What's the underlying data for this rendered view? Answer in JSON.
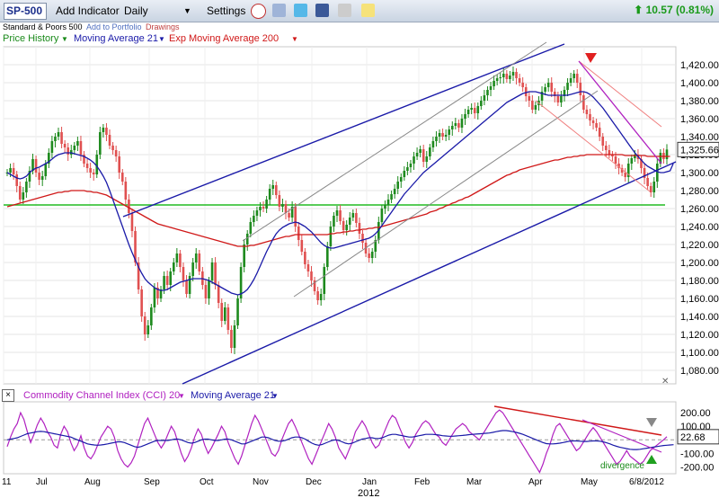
{
  "toolbar": {
    "ticker": "SP-500",
    "add_indicator": "Add Indicator",
    "period": "Daily",
    "settings": "Settings",
    "change": "10.57 (0.81%)"
  },
  "subbar": {
    "name": "Standard & Poors 500",
    "add_portfolio": "Add to Portfolio",
    "drawings": "Drawings"
  },
  "legend": {
    "price": "Price History",
    "ma21": "Moving Average 21",
    "ema200": "Exp Moving Average 200",
    "cci": "Commodity Channel Index (CCI) 20",
    "cci_ma": "Moving Average 21"
  },
  "colors": {
    "up": "#1e8a1e",
    "down": "#e05050",
    "ma21": "#1a1aa8",
    "ema200": "#d01818",
    "support": "#22bb22",
    "channel": "#1a1aa8",
    "cci": "#b020c0"
  },
  "chart_data": [
    {
      "type": "candlestick",
      "title": "",
      "ylim": [
        1065,
        1440
      ],
      "y_ticks": [
        "1,080.00",
        "1,100.00",
        "1,120.00",
        "1,140.00",
        "1,160.00",
        "1,180.00",
        "1,200.00",
        "1,220.00",
        "1,240.00",
        "1,260.00",
        "1,280.00",
        "1,300.00",
        "1,320.00",
        "1,340.00",
        "1,360.00",
        "1,380.00",
        "1,400.00",
        "1,420.00"
      ],
      "y_tick_values": [
        1080,
        1100,
        1120,
        1140,
        1160,
        1180,
        1200,
        1220,
        1240,
        1260,
        1280,
        1300,
        1320,
        1340,
        1360,
        1380,
        1400,
        1420
      ],
      "x_labels": [
        "11",
        "Jul",
        "Aug",
        "Sep",
        "Oct",
        "Nov",
        "Dec",
        "Jan",
        "Feb",
        "Mar",
        "Apr",
        "May",
        "6/8/2012"
      ],
      "year_label": "2012",
      "last_price": "1,325.66",
      "series": {
        "close": [
          1300,
          1305,
          1298,
          1285,
          1270,
          1278,
          1290,
          1302,
          1315,
          1300,
          1292,
          1296,
          1310,
          1322,
          1335,
          1340,
          1345,
          1332,
          1328,
          1320,
          1325,
          1330,
          1335,
          1320,
          1310,
          1305,
          1300,
          1298,
          1320,
          1345,
          1350,
          1342,
          1330,
          1325,
          1318,
          1300,
          1290,
          1270,
          1255,
          1235,
          1200,
          1170,
          1140,
          1120,
          1130,
          1150,
          1172,
          1160,
          1170,
          1185,
          1175,
          1190,
          1200,
          1210,
          1195,
          1180,
          1165,
          1185,
          1200,
          1210,
          1190,
          1175,
          1160,
          1180,
          1200,
          1175,
          1155,
          1135,
          1150,
          1125,
          1105,
          1130,
          1160,
          1195,
          1220,
          1232,
          1245,
          1252,
          1258,
          1262,
          1260,
          1270,
          1282,
          1286,
          1275,
          1262,
          1265,
          1255,
          1250,
          1262,
          1240,
          1225,
          1212,
          1198,
          1190,
          1180,
          1168,
          1158,
          1165,
          1195,
          1218,
          1240,
          1252,
          1258,
          1246,
          1236,
          1242,
          1250,
          1255,
          1244,
          1232,
          1222,
          1210,
          1205,
          1212,
          1225,
          1245,
          1260,
          1264,
          1270,
          1276,
          1282,
          1290,
          1295,
          1302,
          1306,
          1310,
          1318,
          1322,
          1326,
          1312,
          1318,
          1328,
          1335,
          1340,
          1344,
          1340,
          1342,
          1348,
          1352,
          1355,
          1350,
          1360,
          1365,
          1370,
          1372,
          1366,
          1374,
          1380,
          1386,
          1392,
          1396,
          1402,
          1405,
          1406,
          1410,
          1404,
          1408,
          1412,
          1405,
          1400,
          1395,
          1385,
          1380,
          1370,
          1375,
          1380,
          1390,
          1395,
          1400,
          1390,
          1385,
          1378,
          1385,
          1392,
          1400,
          1405,
          1410,
          1400,
          1386,
          1370,
          1365,
          1358,
          1355,
          1350,
          1340,
          1330,
          1325,
          1320,
          1318,
          1310,
          1305,
          1300,
          1295,
          1310,
          1316,
          1320,
          1315,
          1305,
          1294,
          1285,
          1278,
          1290,
          1310,
          1322,
          1315,
          1325.66
        ],
        "ma21": [
          1300,
          1298,
          1296,
          1294,
          1293,
          1294,
          1296,
          1300,
          1303,
          1305,
          1306,
          1308,
          1310,
          1312,
          1315,
          1318,
          1320,
          1321,
          1322,
          1322,
          1322,
          1321,
          1320,
          1319,
          1318,
          1316,
          1314,
          1311,
          1307,
          1302,
          1296,
          1289,
          1280,
          1270,
          1260,
          1250,
          1240,
          1230,
          1220,
          1211,
          1203,
          1195,
          1188,
          1182,
          1178,
          1175,
          1172,
          1170,
          1169,
          1169,
          1170,
          1172,
          1174,
          1176,
          1178,
          1179,
          1180,
          1181,
          1182,
          1182,
          1182,
          1182,
          1181,
          1180,
          1178,
          1176,
          1174,
          1172,
          1170,
          1168,
          1166,
          1165,
          1164,
          1165,
          1167,
          1170,
          1175,
          1181,
          1188,
          1196,
          1204,
          1212,
          1219,
          1226,
          1232,
          1236,
          1239,
          1241,
          1243,
          1244,
          1245,
          1244,
          1242,
          1240,
          1237,
          1234,
          1230,
          1226,
          1222,
          1219,
          1217,
          1216,
          1216,
          1217,
          1218,
          1219,
          1220,
          1221,
          1222,
          1223,
          1224,
          1225,
          1226,
          1227,
          1229,
          1232,
          1236,
          1241,
          1246,
          1251,
          1256,
          1261,
          1266,
          1271,
          1276,
          1280,
          1284,
          1288,
          1292,
          1296,
          1300,
          1303,
          1306,
          1309,
          1312,
          1315,
          1318,
          1321,
          1324,
          1327,
          1330,
          1333,
          1336,
          1339,
          1342,
          1345,
          1348,
          1351,
          1354,
          1357,
          1360,
          1363,
          1366,
          1369,
          1372,
          1375,
          1378,
          1380,
          1382,
          1384,
          1386,
          1388,
          1389,
          1390,
          1390,
          1390,
          1389,
          1388,
          1387,
          1386,
          1386,
          1386,
          1386,
          1386,
          1386,
          1386,
          1387,
          1388,
          1389,
          1390,
          1390,
          1389,
          1387,
          1384,
          1380,
          1376,
          1372,
          1367,
          1362,
          1357,
          1352,
          1347,
          1342,
          1337,
          1332,
          1327,
          1322,
          1318,
          1314,
          1310,
          1307,
          1305,
          1303,
          1301,
          1300,
          1300,
          1301,
          1302,
          1310
        ],
        "ema200": [
          1262,
          1263,
          1264,
          1265,
          1266,
          1267,
          1268,
          1269,
          1270,
          1271,
          1272,
          1273,
          1274,
          1275,
          1276,
          1277,
          1278,
          1278,
          1279,
          1279,
          1280,
          1280,
          1280,
          1280,
          1280,
          1279,
          1279,
          1278,
          1278,
          1277,
          1276,
          1275,
          1273,
          1271,
          1269,
          1267,
          1265,
          1263,
          1261,
          1259,
          1257,
          1255,
          1253,
          1251,
          1249,
          1247,
          1245,
          1243,
          1242,
          1241,
          1240,
          1239,
          1238,
          1237,
          1236,
          1235,
          1234,
          1233,
          1232,
          1231,
          1230,
          1229,
          1228,
          1227,
          1226,
          1225,
          1224,
          1223,
          1222,
          1221,
          1220,
          1219,
          1218,
          1218,
          1218,
          1218,
          1219,
          1219,
          1220,
          1221,
          1222,
          1223,
          1224,
          1225,
          1226,
          1227,
          1228,
          1229,
          1229,
          1230,
          1231,
          1231,
          1231,
          1231,
          1231,
          1231,
          1231,
          1231,
          1231,
          1231,
          1231,
          1232,
          1232,
          1233,
          1233,
          1234,
          1234,
          1235,
          1235,
          1236,
          1236,
          1237,
          1237,
          1238,
          1238,
          1239,
          1239,
          1240,
          1241,
          1242,
          1243,
          1244,
          1245,
          1246,
          1247,
          1248,
          1249,
          1250,
          1251,
          1252,
          1253,
          1254,
          1256,
          1257,
          1258,
          1260,
          1261,
          1263,
          1264,
          1266,
          1267,
          1269,
          1270,
          1272,
          1273,
          1275,
          1277,
          1279,
          1281,
          1283,
          1285,
          1287,
          1289,
          1291,
          1293,
          1295,
          1297,
          1298,
          1300,
          1301,
          1303,
          1304,
          1305,
          1306,
          1307,
          1308,
          1309,
          1310,
          1311,
          1312,
          1313,
          1314,
          1314,
          1315,
          1316,
          1317,
          1317,
          1318,
          1318,
          1319,
          1319,
          1320,
          1320,
          1320,
          1320,
          1320,
          1320,
          1320,
          1320,
          1320,
          1320,
          1320,
          1320,
          1319,
          1319,
          1319,
          1319,
          1319,
          1319,
          1319,
          1318,
          1318,
          1318,
          1318,
          1318,
          1318,
          1318,
          1318
        ]
      },
      "support_level": 1264,
      "annotations": [
        "down-arrow near Apr top"
      ]
    },
    {
      "type": "line",
      "title": "Commodity Channel Index (CCI) 20",
      "ylim": [
        -250,
        280
      ],
      "y_ticks": [
        "200.00",
        "100.00",
        "-100.00",
        "-200.00"
      ],
      "y_tick_values": [
        200,
        100,
        -100,
        -200
      ],
      "last_value": "22.68",
      "annotation_text": "divergence",
      "series": {
        "cci": [
          -50,
          20,
          80,
          120,
          200,
          150,
          60,
          -20,
          40,
          110,
          160,
          120,
          60,
          20,
          -40,
          -60,
          40,
          100,
          60,
          -20,
          -80,
          -40,
          30,
          -60,
          -120,
          -140,
          -100,
          -40,
          20,
          60,
          100,
          80,
          20,
          -80,
          -140,
          -180,
          -200,
          -170,
          -120,
          -40,
          40,
          120,
          160,
          100,
          40,
          -20,
          -60,
          -20,
          40,
          100,
          60,
          -20,
          -100,
          -160,
          -120,
          -60,
          20,
          80,
          40,
          -40,
          -100,
          -60,
          -10,
          40,
          100,
          60,
          -20,
          -80,
          -140,
          -180,
          -120,
          -40,
          40,
          120,
          180,
          140,
          80,
          20,
          -40,
          -100,
          -120,
          -80,
          0,
          60,
          120,
          150,
          100,
          40,
          -20,
          -80,
          -140,
          -180,
          -120,
          -60,
          0,
          60,
          120,
          80,
          20,
          -60,
          -100,
          -140,
          -80,
          -20,
          60,
          100,
          140,
          100,
          40,
          -20,
          -60,
          -40,
          20,
          80,
          140,
          180,
          160,
          100,
          40,
          -20,
          -60,
          -20,
          40,
          80,
          120,
          140,
          120,
          80,
          40,
          20,
          -20,
          -40,
          0,
          40,
          80,
          100,
          120,
          100,
          60,
          40,
          20,
          0,
          40,
          80,
          120,
          160,
          200,
          220,
          200,
          160,
          120,
          80,
          40,
          0,
          -40,
          -80,
          -120,
          -160,
          -200,
          -240,
          -180,
          -100,
          -40,
          40,
          100,
          120,
          80,
          40,
          0,
          -40,
          -80,
          -60,
          -20,
          20,
          60,
          90,
          60,
          20,
          -20,
          -60,
          -100,
          -140,
          -180,
          -160,
          -120,
          -80,
          -120,
          -140,
          -160,
          -180,
          -160,
          -120,
          -80,
          -60,
          -40,
          -20,
          0,
          22.68
        ],
        "cci_ma": [
          0,
          5,
          10,
          15,
          25,
          35,
          45,
          50,
          55,
          60,
          62,
          60,
          55,
          50,
          45,
          40,
          35,
          30,
          25,
          20,
          10,
          0,
          -10,
          -20,
          -30,
          -35,
          -38,
          -40,
          -38,
          -35,
          -30,
          -25,
          -20,
          -15,
          -15,
          -20,
          -30,
          -40,
          -50,
          -55,
          -50,
          -40,
          -30,
          -20,
          -10,
          -5,
          -5,
          -5,
          -5,
          0,
          5,
          5,
          0,
          -10,
          -20,
          -25,
          -20,
          -10,
          0,
          5,
          5,
          0,
          -5,
          -5,
          0,
          5,
          5,
          0,
          -10,
          -20,
          -30,
          -30,
          -20,
          -10,
          0,
          10,
          20,
          20,
          15,
          5,
          -5,
          -10,
          -10,
          -5,
          5,
          15,
          20,
          20,
          15,
          5,
          -10,
          -25,
          -35,
          -40,
          -35,
          -25,
          -15,
          -5,
          0,
          -5,
          -15,
          -25,
          -30,
          -25,
          -15,
          -5,
          5,
          10,
          15,
          15,
          10,
          10,
          15,
          25,
          35,
          40,
          40,
          35,
          30,
          25,
          20,
          20,
          25,
          30,
          35,
          40,
          40,
          40,
          38,
          35,
          30,
          28,
          26,
          26,
          28,
          30,
          32,
          35,
          38,
          40,
          42,
          44,
          46,
          48,
          50,
          55,
          60,
          65,
          68,
          68,
          65,
          60,
          55,
          48,
          40,
          30,
          20,
          10,
          0,
          -10,
          -20,
          -28,
          -30,
          -30,
          -28,
          -25,
          -20,
          -15,
          -10,
          -8,
          -8,
          -10,
          -12,
          -12,
          -10,
          -8,
          -8,
          -10,
          -15,
          -22,
          -30,
          -40,
          -48,
          -55,
          -60,
          -65,
          -70,
          -72,
          -72,
          -70,
          -66,
          -62,
          -58,
          -54,
          -50,
          -46,
          -42,
          -40,
          -38,
          -36
        ]
      }
    }
  ]
}
